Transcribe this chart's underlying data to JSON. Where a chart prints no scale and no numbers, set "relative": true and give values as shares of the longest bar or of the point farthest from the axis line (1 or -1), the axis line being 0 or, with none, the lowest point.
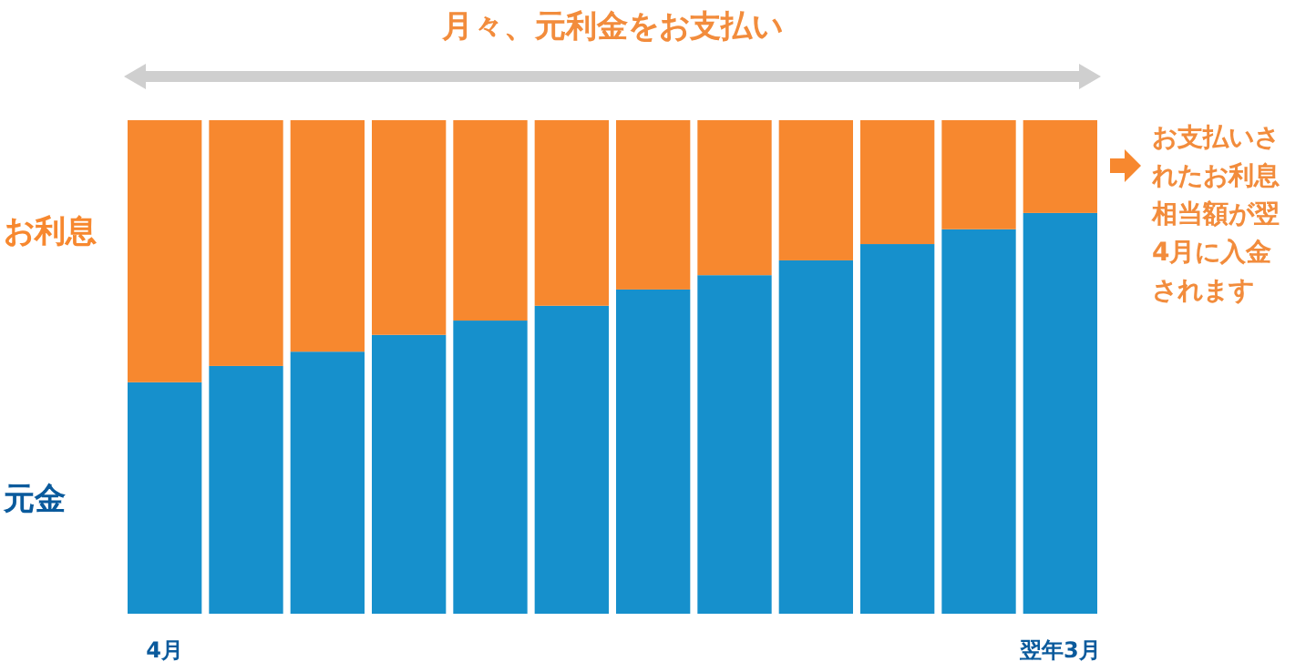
{
  "chart_data": {
    "type": "bar",
    "title": "月々、元利金をお支払い",
    "stacked": true,
    "relative": true,
    "categories": [
      "4月",
      null,
      null,
      null,
      null,
      null,
      null,
      null,
      null,
      null,
      null,
      "翌年3月"
    ],
    "series": [
      {
        "name": "元金",
        "color": "#1690cc",
        "values": [
          0.469,
          0.502,
          0.531,
          0.565,
          0.594,
          0.624,
          0.657,
          0.686,
          0.716,
          0.749,
          0.779,
          0.812
        ]
      },
      {
        "name": "お利息",
        "color": "#f7882f",
        "values": [
          0.531,
          0.498,
          0.469,
          0.435,
          0.406,
          0.376,
          0.343,
          0.314,
          0.284,
          0.251,
          0.221,
          0.188
        ]
      }
    ],
    "annotations": [
      "お支払いされたお利息相当額が翌4月に入金されます"
    ]
  }
}
